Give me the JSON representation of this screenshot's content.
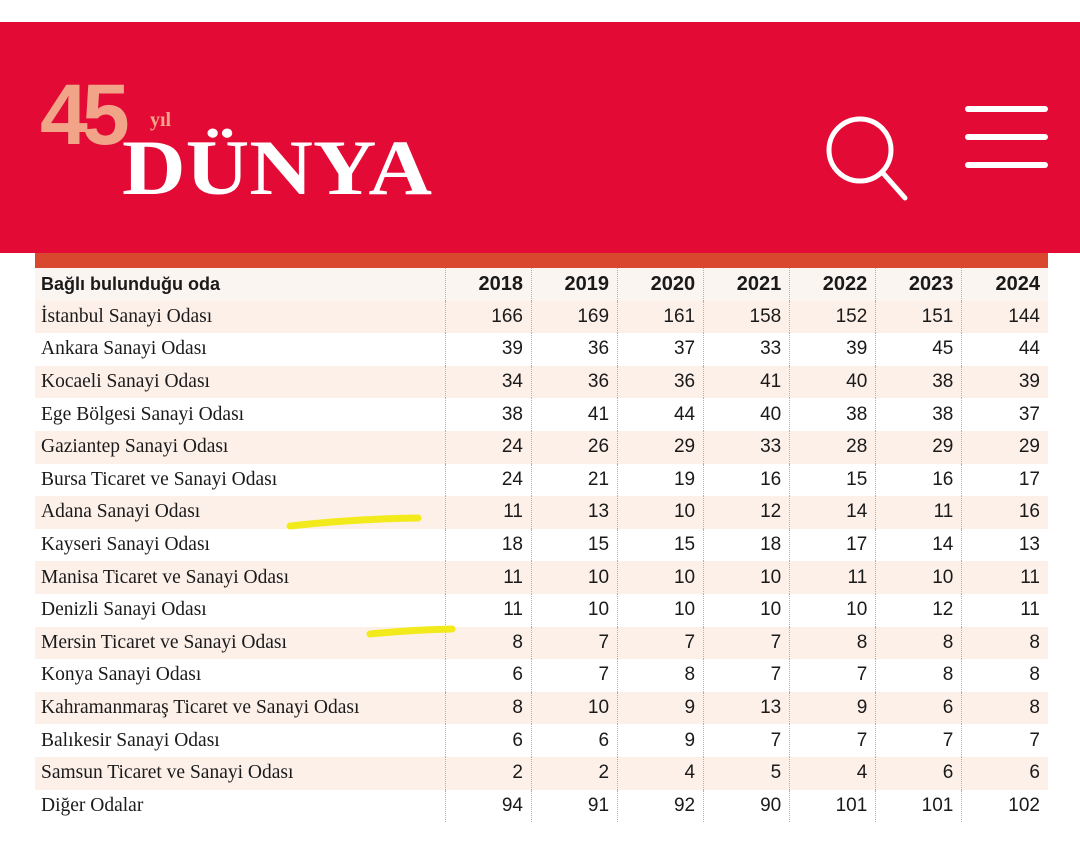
{
  "header": {
    "logo_number": "45",
    "logo_suffix": "yıl",
    "logo_name": "DÜNYA"
  },
  "table": {
    "columns": [
      "Bağlı bulunduğu oda",
      "2018",
      "2019",
      "2020",
      "2021",
      "2022",
      "2023",
      "2024"
    ],
    "rows": [
      {
        "name": "İstanbul Sanayi Odası",
        "values": [
          166,
          169,
          161,
          158,
          152,
          151,
          144
        ]
      },
      {
        "name": "Ankara Sanayi Odası",
        "values": [
          39,
          36,
          37,
          33,
          39,
          45,
          44
        ]
      },
      {
        "name": "Kocaeli Sanayi Odası",
        "values": [
          34,
          36,
          36,
          41,
          40,
          38,
          39
        ]
      },
      {
        "name": "Ege Bölgesi Sanayi Odası",
        "values": [
          38,
          41,
          44,
          40,
          38,
          38,
          37
        ]
      },
      {
        "name": "Gaziantep Sanayi Odası",
        "values": [
          24,
          26,
          29,
          33,
          28,
          29,
          29
        ]
      },
      {
        "name": "Bursa Ticaret ve Sanayi Odası",
        "values": [
          24,
          21,
          19,
          16,
          15,
          16,
          17
        ]
      },
      {
        "name": "Adana Sanayi Odası",
        "values": [
          11,
          13,
          10,
          12,
          14,
          11,
          16
        ]
      },
      {
        "name": "Kayseri Sanayi Odası",
        "values": [
          18,
          15,
          15,
          18,
          17,
          14,
          13
        ]
      },
      {
        "name": "Manisa Ticaret ve Sanayi Odası",
        "values": [
          11,
          10,
          10,
          10,
          11,
          10,
          11
        ]
      },
      {
        "name": "Denizli Sanayi Odası",
        "values": [
          11,
          10,
          10,
          10,
          10,
          12,
          11
        ]
      },
      {
        "name": "Mersin Ticaret ve Sanayi Odası",
        "values": [
          8,
          7,
          7,
          7,
          8,
          8,
          8
        ]
      },
      {
        "name": "Konya Sanayi Odası",
        "values": [
          6,
          7,
          8,
          7,
          7,
          8,
          8
        ]
      },
      {
        "name": "Kahramanmaraş Ticaret ve Sanayi Odası",
        "values": [
          8,
          10,
          9,
          13,
          9,
          6,
          8
        ]
      },
      {
        "name": "Balıkesir Sanayi Odası",
        "values": [
          6,
          6,
          9,
          7,
          7,
          7,
          7
        ]
      },
      {
        "name": "Samsun Ticaret ve Sanayi Odası",
        "values": [
          2,
          2,
          4,
          5,
          4,
          6,
          6
        ]
      },
      {
        "name": "Diğer Odalar",
        "values": [
          94,
          91,
          92,
          90,
          101,
          101,
          102
        ]
      }
    ]
  }
}
